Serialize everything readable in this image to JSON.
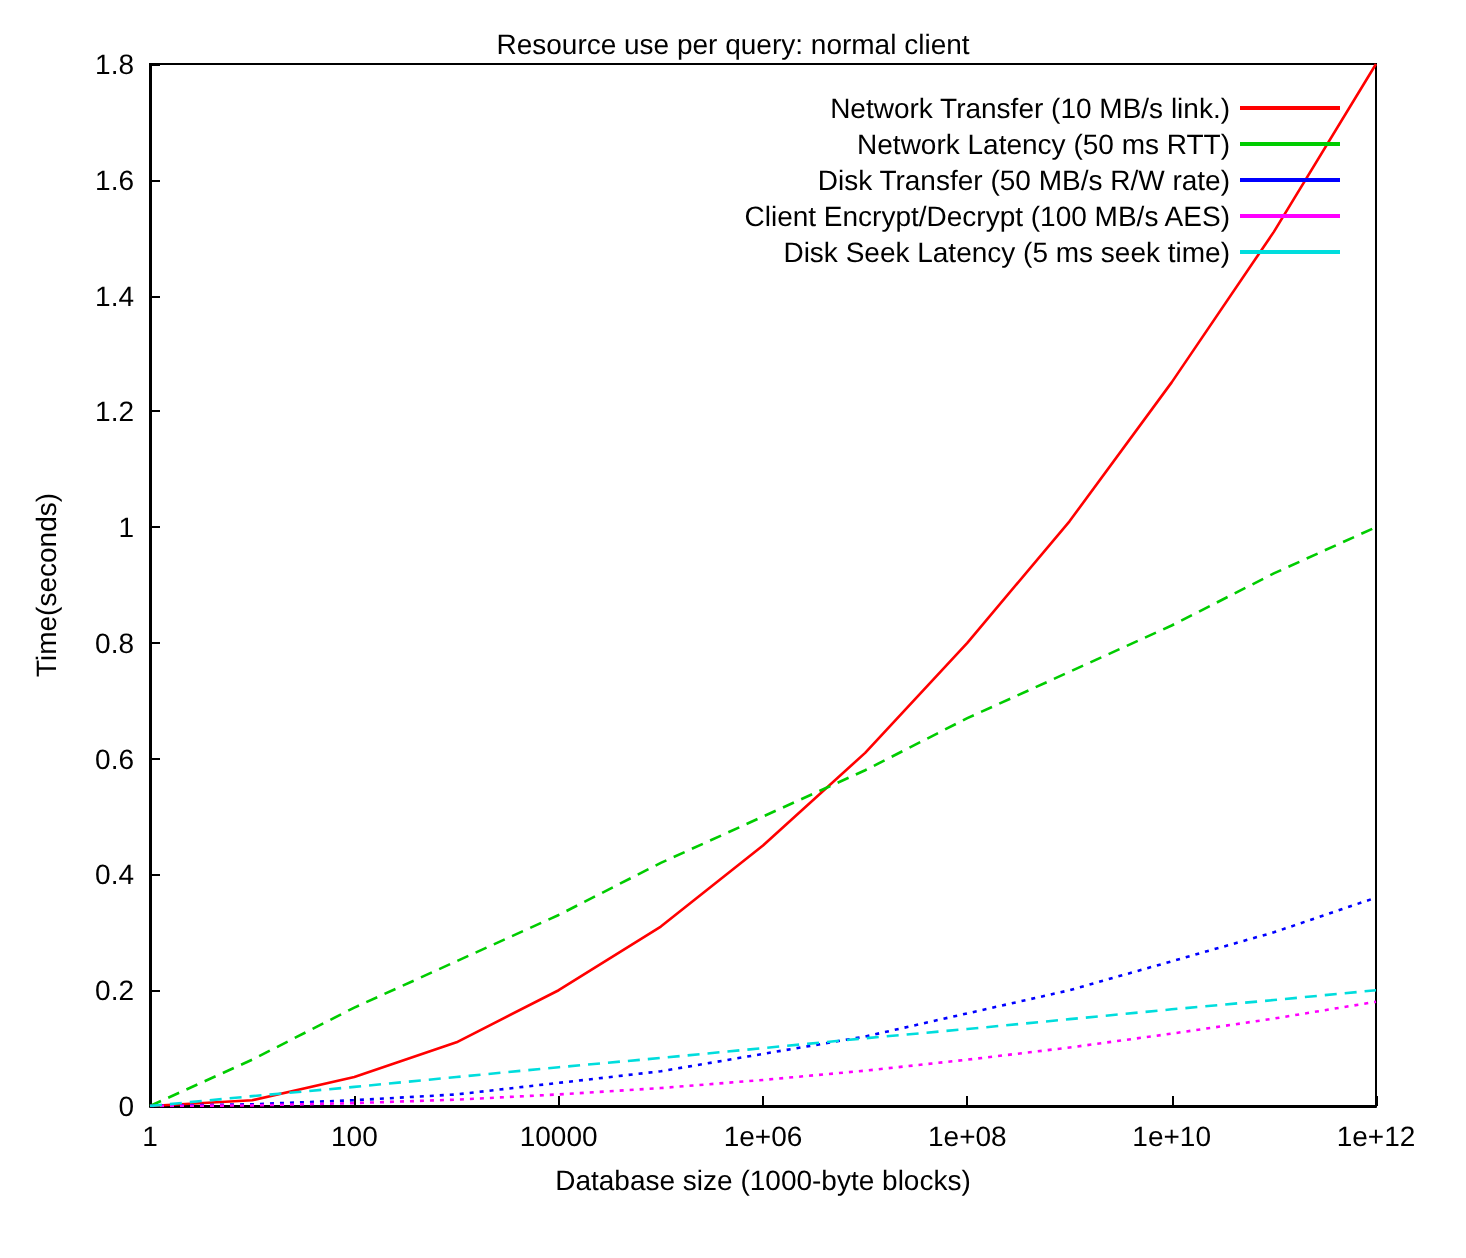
{
  "chart_data": {
    "type": "line",
    "title": "Resource use per query: normal client",
    "xlabel": "Database size (1000-byte blocks)",
    "ylabel": "Time(seconds)",
    "log": "x",
    "x": [
      1,
      10,
      100,
      1000,
      10000,
      100000,
      1000000,
      10000000,
      100000000,
      1000000000,
      10000000000,
      100000000000,
      1000000000000
    ],
    "series": [
      {
        "name": "Network Transfer (10 MB/s link.)",
        "color": "#ff0000",
        "line_style": "solid",
        "values": [
          0,
          0.01,
          0.05,
          0.11,
          0.2,
          0.31,
          0.45,
          0.61,
          0.8,
          1.01,
          1.25,
          1.51,
          1.8
        ]
      },
      {
        "name": "Network Latency (50 ms RTT)",
        "color": "#00cc00",
        "line_style": "dashed",
        "values": [
          0,
          0.08,
          0.17,
          0.25,
          0.33,
          0.42,
          0.5,
          0.58,
          0.67,
          0.75,
          0.83,
          0.92,
          1.0
        ]
      },
      {
        "name": "Disk Transfer (50 MB/s R/W rate)",
        "color": "#0000ff",
        "line_style": "dotted",
        "values": [
          0,
          0.003,
          0.01,
          0.02,
          0.04,
          0.06,
          0.09,
          0.12,
          0.16,
          0.2,
          0.25,
          0.3,
          0.36
        ]
      },
      {
        "name": "Client Encrypt/Decrypt (100 MB/s AES)",
        "color": "#ff00ff",
        "line_style": "dotted",
        "values": [
          0,
          0.001,
          0.005,
          0.011,
          0.02,
          0.031,
          0.045,
          0.061,
          0.08,
          0.101,
          0.125,
          0.151,
          0.18
        ]
      },
      {
        "name": "Disk Seek Latency (5 ms seek time)",
        "color": "#00dddd",
        "line_style": "dashed",
        "values": [
          0,
          0.017,
          0.033,
          0.05,
          0.067,
          0.083,
          0.1,
          0.117,
          0.133,
          0.15,
          0.167,
          0.183,
          0.2
        ]
      }
    ],
    "xlim": [
      1,
      1000000000000
    ],
    "xticks": [
      1,
      100,
      10000,
      {
        "value": 1000000,
        "label": "1e+06"
      },
      {
        "value": 100000000,
        "label": "1e+08"
      },
      {
        "value": 10000000000,
        "label": "1e+10"
      },
      {
        "value": 1000000000000,
        "label": "1e+12"
      }
    ],
    "ylim": [
      0,
      1.8
    ],
    "yticks": [
      0,
      0.2,
      0.4,
      0.6,
      0.8,
      1,
      1.2,
      1.4,
      1.6,
      1.8
    ],
    "legend": "top right",
    "grid": false,
    "marker": "none"
  }
}
